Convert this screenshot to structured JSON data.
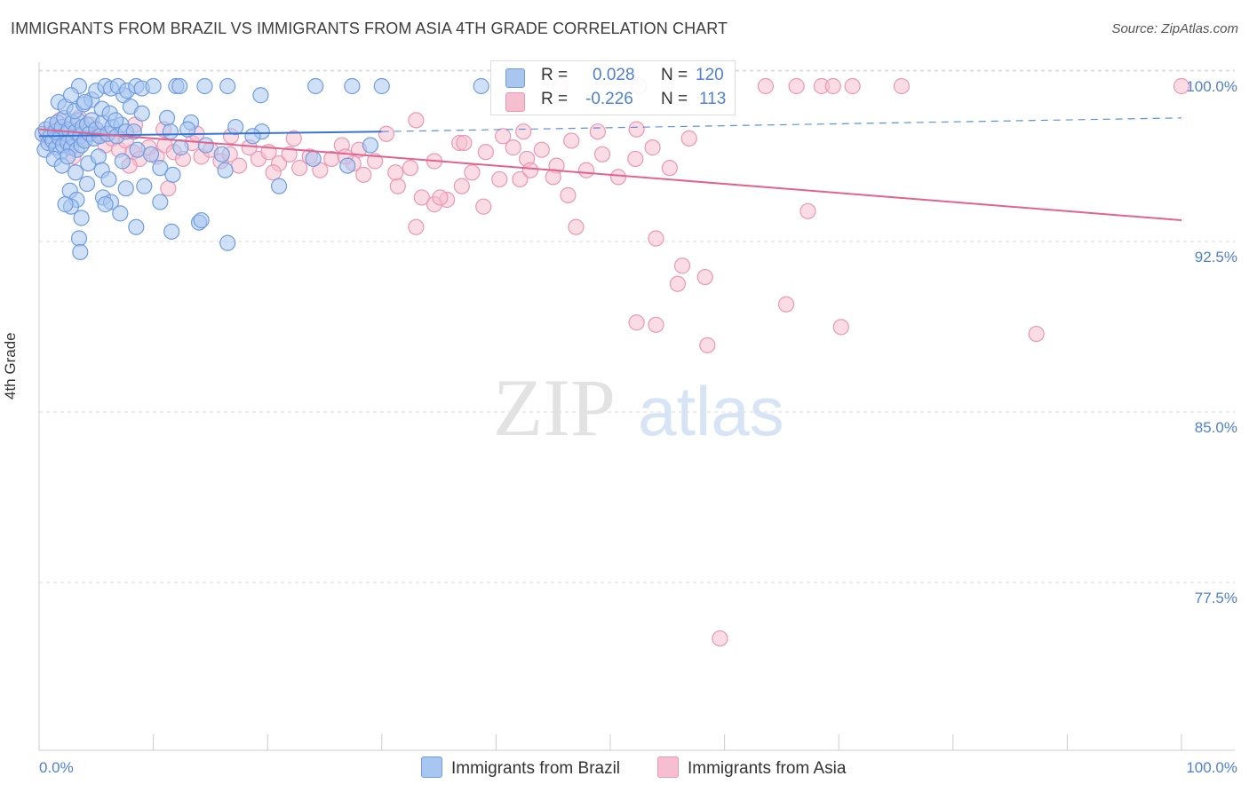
{
  "title": "IMMIGRANTS FROM BRAZIL VS IMMIGRANTS FROM ASIA 4TH GRADE CORRELATION CHART",
  "source": "Source: ZipAtlas.com",
  "watermark": {
    "zip": "ZIP",
    "atlas": "atlas"
  },
  "legend": {
    "r_label": "R =",
    "n_label": "N =",
    "brazil": {
      "r": "0.028",
      "n": "120"
    },
    "asia": {
      "r": "-0.226",
      "n": "113"
    }
  },
  "bottom_legend": {
    "brazil": "Immigrants from Brazil",
    "asia": "Immigrants from Asia"
  },
  "colors": {
    "brazil_fill": "#a9c6f0",
    "brazil_stroke": "#6f9de0",
    "brazil_line": "#3a74d6",
    "asia_fill": "#f6bfd0",
    "asia_stroke": "#ec97b3",
    "asia_line": "#e4628e",
    "tick_text": "#4f7fd8",
    "grid": "#dddddd"
  },
  "chart_data": {
    "type": "scatter",
    "title": "IMMIGRANTS FROM BRAZIL VS IMMIGRANTS FROM ASIA 4TH GRADE CORRELATION CHART",
    "xlabel": "",
    "ylabel": "4th Grade",
    "xlim": [
      0,
      100
    ],
    "ylim": [
      70.5,
      101
    ],
    "x_tick_labels": [
      "0.0%",
      "100.0%"
    ],
    "y_ticks": [
      {
        "value": 100.0,
        "label": "100.0%"
      },
      {
        "value": 92.5,
        "label": "92.5%"
      },
      {
        "value": 85.0,
        "label": "85.0%"
      },
      {
        "value": 77.5,
        "label": "77.5%"
      }
    ],
    "series": [
      {
        "name": "Immigrants from Brazil",
        "r": 0.028,
        "n": 120,
        "trend": {
          "x0": 0,
          "y0": 97.8,
          "x1": 30,
          "y1": 98.0,
          "dash_to_x": 100,
          "dash_to_y": 98.6
        },
        "points": [
          [
            0.3,
            97.9
          ],
          [
            0.5,
            97.2
          ],
          [
            0.6,
            98.1
          ],
          [
            0.8,
            97.5
          ],
          [
            1.0,
            97.8
          ],
          [
            1.1,
            98.3
          ],
          [
            1.2,
            97.6
          ],
          [
            1.4,
            98.0
          ],
          [
            1.5,
            97.3
          ],
          [
            1.6,
            98.4
          ],
          [
            1.8,
            97.7
          ],
          [
            1.9,
            97.1
          ],
          [
            2.0,
            98.2
          ],
          [
            2.1,
            97.4
          ],
          [
            2.2,
            98.6
          ],
          [
            2.4,
            97.9
          ],
          [
            2.5,
            97.5
          ],
          [
            2.6,
            98.1
          ],
          [
            2.8,
            97.3
          ],
          [
            2.9,
            98.4
          ],
          [
            3.0,
            97.7
          ],
          [
            3.2,
            98.0
          ],
          [
            3.3,
            97.2
          ],
          [
            3.4,
            98.5
          ],
          [
            3.6,
            97.8
          ],
          [
            3.7,
            97.4
          ],
          [
            3.8,
            98.2
          ],
          [
            4.0,
            97.6
          ],
          [
            4.2,
            98.3
          ],
          [
            4.4,
            97.9
          ],
          [
            4.6,
            98.5
          ],
          [
            4.8,
            97.7
          ],
          [
            5.0,
            98.1
          ],
          [
            5.3,
            97.8
          ],
          [
            5.6,
            98.4
          ],
          [
            6.0,
            97.9
          ],
          [
            6.4,
            98.2
          ],
          [
            6.8,
            97.8
          ],
          [
            7.2,
            98.3
          ],
          [
            7.6,
            98.0
          ],
          [
            1.7,
            99.3
          ],
          [
            2.3,
            99.1
          ],
          [
            3.1,
            98.9
          ],
          [
            3.9,
            99.2
          ],
          [
            4.6,
            99.4
          ],
          [
            5.5,
            99.0
          ],
          [
            6.2,
            98.8
          ],
          [
            7.4,
            99.6
          ],
          [
            8.0,
            99.1
          ],
          [
            9.0,
            98.8
          ],
          [
            3.5,
            100.0
          ],
          [
            5.0,
            99.8
          ],
          [
            5.8,
            100.0
          ],
          [
            6.3,
            99.9
          ],
          [
            6.9,
            100.0
          ],
          [
            7.7,
            99.8
          ],
          [
            8.5,
            100.0
          ],
          [
            9.0,
            99.9
          ],
          [
            10.0,
            100.0
          ],
          [
            12.0,
            100.0
          ],
          [
            12.3,
            100.0
          ],
          [
            14.5,
            100.0
          ],
          [
            16.5,
            100.0
          ],
          [
            19.4,
            99.6
          ],
          [
            24.2,
            100.0
          ],
          [
            27.4,
            100.0
          ],
          [
            30.0,
            100.0
          ],
          [
            38.7,
            100.0
          ],
          [
            2.8,
            99.6
          ],
          [
            4.0,
            99.3
          ],
          [
            1.3,
            96.8
          ],
          [
            2.0,
            96.5
          ],
          [
            2.5,
            96.9
          ],
          [
            3.2,
            96.2
          ],
          [
            4.3,
            96.6
          ],
          [
            5.2,
            96.9
          ],
          [
            5.5,
            96.3
          ],
          [
            6.1,
            95.9
          ],
          [
            7.3,
            96.7
          ],
          [
            8.6,
            97.2
          ],
          [
            10.6,
            96.4
          ],
          [
            11.7,
            96.1
          ],
          [
            2.7,
            95.4
          ],
          [
            3.3,
            95.0
          ],
          [
            4.2,
            95.7
          ],
          [
            5.6,
            95.1
          ],
          [
            6.3,
            94.9
          ],
          [
            7.6,
            95.5
          ],
          [
            9.2,
            95.6
          ],
          [
            10.6,
            94.9
          ],
          [
            2.8,
            94.7
          ],
          [
            3.7,
            94.2
          ],
          [
            5.8,
            94.8
          ],
          [
            7.1,
            94.4
          ],
          [
            8.5,
            93.8
          ],
          [
            11.6,
            93.6
          ],
          [
            14.0,
            94.0
          ],
          [
            16.5,
            93.1
          ],
          [
            14.2,
            94.1
          ],
          [
            3.5,
            93.3
          ],
          [
            3.6,
            92.7
          ],
          [
            2.3,
            94.8
          ],
          [
            13.3,
            98.4
          ],
          [
            16.3,
            96.3
          ],
          [
            17.2,
            98.2
          ],
          [
            19.5,
            98.0
          ],
          [
            21.0,
            95.6
          ],
          [
            24.0,
            96.8
          ],
          [
            29.0,
            97.4
          ],
          [
            27.0,
            96.5
          ],
          [
            11.2,
            98.6
          ],
          [
            11.5,
            98.0
          ],
          [
            13.0,
            98.1
          ],
          [
            14.6,
            97.4
          ],
          [
            16.0,
            97.0
          ],
          [
            18.7,
            97.8
          ],
          [
            9.8,
            97.0
          ],
          [
            12.4,
            97.3
          ],
          [
            8.3,
            98.0
          ],
          [
            6.7,
            98.5
          ]
        ]
      },
      {
        "name": "Immigrants from Asia",
        "r": -0.226,
        "n": 113,
        "trend": {
          "x0": 0,
          "y0": 98.1,
          "x1": 100,
          "y1": 94.1
        },
        "points": [
          [
            0.6,
            97.9
          ],
          [
            1.0,
            97.6
          ],
          [
            1.5,
            98.2
          ],
          [
            2.0,
            97.8
          ],
          [
            2.6,
            97.5
          ],
          [
            3.2,
            98.0
          ],
          [
            3.9,
            97.7
          ],
          [
            4.5,
            98.3
          ],
          [
            5.1,
            97.9
          ],
          [
            5.8,
            97.4
          ],
          [
            6.4,
            97.7
          ],
          [
            7.0,
            97.2
          ],
          [
            7.6,
            97.6
          ],
          [
            8.2,
            97.1
          ],
          [
            8.8,
            96.8
          ],
          [
            9.6,
            97.3
          ],
          [
            10.3,
            96.9
          ],
          [
            11.0,
            97.4
          ],
          [
            11.8,
            97.1
          ],
          [
            12.6,
            96.8
          ],
          [
            13.4,
            97.5
          ],
          [
            14.2,
            96.9
          ],
          [
            15.0,
            97.2
          ],
          [
            15.9,
            96.7
          ],
          [
            16.7,
            97.0
          ],
          [
            17.5,
            96.5
          ],
          [
            18.4,
            97.3
          ],
          [
            19.2,
            96.8
          ],
          [
            20.1,
            97.1
          ],
          [
            21.0,
            96.6
          ],
          [
            21.9,
            97.0
          ],
          [
            22.8,
            96.4
          ],
          [
            23.7,
            96.9
          ],
          [
            24.6,
            96.3
          ],
          [
            25.6,
            96.8
          ],
          [
            26.5,
            97.4
          ],
          [
            27.5,
            96.6
          ],
          [
            28.4,
            96.1
          ],
          [
            29.4,
            96.7
          ],
          [
            30.4,
            97.9
          ],
          [
            31.4,
            95.6
          ],
          [
            32.5,
            96.4
          ],
          [
            33.5,
            95.1
          ],
          [
            34.6,
            96.7
          ],
          [
            35.7,
            95.0
          ],
          [
            36.8,
            97.5
          ],
          [
            37.9,
            96.2
          ],
          [
            39.1,
            97.1
          ],
          [
            40.3,
            95.9
          ],
          [
            41.5,
            97.3
          ],
          [
            42.7,
            96.8
          ],
          [
            44.0,
            97.2
          ],
          [
            45.3,
            96.5
          ],
          [
            46.6,
            97.6
          ],
          [
            47.9,
            96.3
          ],
          [
            49.3,
            97.0
          ],
          [
            50.7,
            96.0
          ],
          [
            52.2,
            96.8
          ],
          [
            53.7,
            97.3
          ],
          [
            55.2,
            96.4
          ],
          [
            1.8,
            98.5
          ],
          [
            3.5,
            98.6
          ],
          [
            5.5,
            97.9
          ],
          [
            8.4,
            98.3
          ],
          [
            10.9,
            98.1
          ],
          [
            13.8,
            97.9
          ],
          [
            16.8,
            97.8
          ],
          [
            22.3,
            97.7
          ],
          [
            28.0,
            97.2
          ],
          [
            33.0,
            98.5
          ],
          [
            37.2,
            97.5
          ],
          [
            40.6,
            97.8
          ],
          [
            42.4,
            98.0
          ],
          [
            48.9,
            98.0
          ],
          [
            52.3,
            98.1
          ],
          [
            56.9,
            97.7
          ],
          [
            3.0,
            96.9
          ],
          [
            7.9,
            96.5
          ],
          [
            11.3,
            95.5
          ],
          [
            20.5,
            96.2
          ],
          [
            26.8,
            96.9
          ],
          [
            31.2,
            96.2
          ],
          [
            34.6,
            94.8
          ],
          [
            35.1,
            95.1
          ],
          [
            37.0,
            95.6
          ],
          [
            42.1,
            95.9
          ],
          [
            45.0,
            96.0
          ],
          [
            46.3,
            95.2
          ],
          [
            43.0,
            96.3
          ],
          [
            38.9,
            94.7
          ],
          [
            33.0,
            93.8
          ],
          [
            47.0,
            93.8
          ],
          [
            54.0,
            93.3
          ],
          [
            67.3,
            94.5
          ],
          [
            56.3,
            92.1
          ],
          [
            58.3,
            91.6
          ],
          [
            55.9,
            91.3
          ],
          [
            65.4,
            90.4
          ],
          [
            52.3,
            89.6
          ],
          [
            54.0,
            89.5
          ],
          [
            70.2,
            89.4
          ],
          [
            87.3,
            89.1
          ],
          [
            58.5,
            88.6
          ],
          [
            59.6,
            75.7
          ],
          [
            68.5,
            100.0
          ],
          [
            69.5,
            100.0
          ],
          [
            63.6,
            100.0
          ],
          [
            66.3,
            100.0
          ],
          [
            71.2,
            100.0
          ],
          [
            75.5,
            100.0
          ],
          [
            100.0,
            100.0
          ],
          [
            52.5,
            100.0
          ],
          [
            45.6,
            100.0
          ]
        ]
      }
    ]
  }
}
